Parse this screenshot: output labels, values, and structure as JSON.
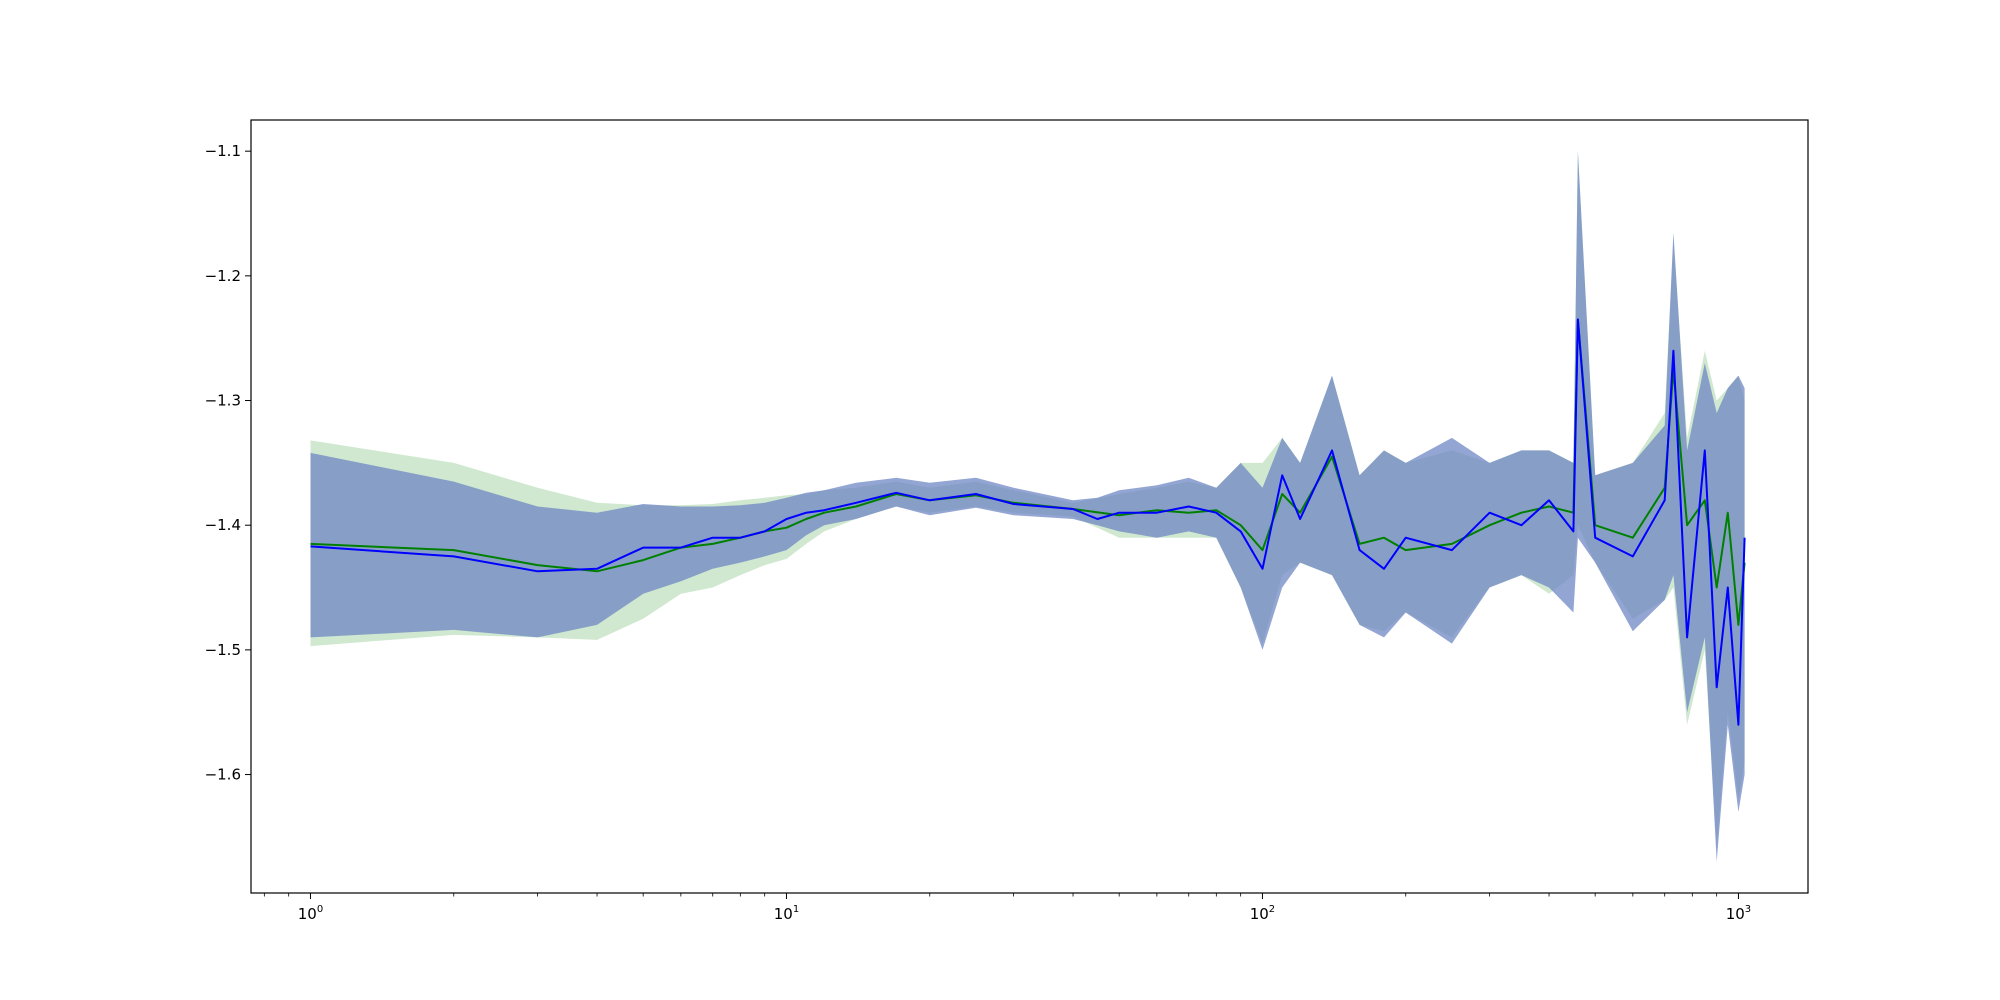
{
  "chart_data": {
    "type": "line",
    "title": "",
    "xlabel": "",
    "ylabel": "",
    "x_scale": "log",
    "xlim": [
      0.75,
      1400
    ],
    "ylim": [
      -1.695,
      -1.075
    ],
    "x_ticks": [
      {
        "value": 1,
        "base": "10",
        "exp": "0"
      },
      {
        "value": 10,
        "base": "10",
        "exp": "1"
      },
      {
        "value": 100,
        "base": "10",
        "exp": "2"
      },
      {
        "value": 1000,
        "base": "10",
        "exp": "3"
      }
    ],
    "y_ticks": [
      {
        "value": -1.1,
        "label": "−1.1"
      },
      {
        "value": -1.2,
        "label": "−1.2"
      },
      {
        "value": -1.3,
        "label": "−1.3"
      },
      {
        "value": -1.4,
        "label": "−1.4"
      },
      {
        "value": -1.5,
        "label": "−1.5"
      },
      {
        "value": -1.6,
        "label": "−1.6"
      }
    ],
    "grid": false,
    "legend": "none",
    "series": [
      {
        "color": "#008000",
        "band_color": "#a8d5a8",
        "x": [
          1,
          2,
          3,
          4,
          5,
          6,
          7,
          8,
          9,
          10,
          11,
          12,
          14,
          17,
          20,
          25,
          30,
          40,
          50,
          60,
          70,
          80,
          90,
          100,
          110,
          120,
          140,
          160,
          180,
          200,
          250,
          300,
          350,
          400,
          450,
          460,
          500,
          600,
          700,
          730,
          780,
          850,
          900,
          950,
          1000,
          1030
        ],
        "y": [
          -1.415,
          -1.42,
          -1.432,
          -1.437,
          -1.428,
          -1.418,
          -1.415,
          -1.41,
          -1.405,
          -1.402,
          -1.395,
          -1.39,
          -1.385,
          -1.375,
          -1.38,
          -1.376,
          -1.382,
          -1.387,
          -1.392,
          -1.388,
          -1.39,
          -1.388,
          -1.4,
          -1.42,
          -1.375,
          -1.39,
          -1.345,
          -1.415,
          -1.41,
          -1.42,
          -1.415,
          -1.4,
          -1.39,
          -1.385,
          -1.39,
          -1.235,
          -1.4,
          -1.41,
          -1.37,
          -1.275,
          -1.4,
          -1.38,
          -1.45,
          -1.39,
          -1.48,
          -1.43
        ],
        "lower": [
          -1.497,
          -1.488,
          -1.49,
          -1.492,
          -1.475,
          -1.455,
          -1.45,
          -1.44,
          -1.432,
          -1.427,
          -1.415,
          -1.405,
          -1.395,
          -1.385,
          -1.39,
          -1.385,
          -1.39,
          -1.393,
          -1.41,
          -1.41,
          -1.41,
          -1.41,
          -1.45,
          -1.495,
          -1.44,
          -1.43,
          -1.44,
          -1.48,
          -1.485,
          -1.47,
          -1.49,
          -1.45,
          -1.44,
          -1.455,
          -1.44,
          -1.4,
          -1.43,
          -1.475,
          -1.46,
          -1.45,
          -1.56,
          -1.5,
          -1.66,
          -1.55,
          -1.62,
          -1.59
        ],
        "upper": [
          -1.332,
          -1.35,
          -1.37,
          -1.382,
          -1.384,
          -1.384,
          -1.383,
          -1.38,
          -1.378,
          -1.376,
          -1.375,
          -1.372,
          -1.37,
          -1.365,
          -1.37,
          -1.365,
          -1.372,
          -1.382,
          -1.375,
          -1.37,
          -1.365,
          -1.37,
          -1.35,
          -1.35,
          -1.33,
          -1.35,
          -1.28,
          -1.36,
          -1.34,
          -1.35,
          -1.34,
          -1.35,
          -1.34,
          -1.34,
          -1.35,
          -1.1,
          -1.36,
          -1.35,
          -1.31,
          -1.17,
          -1.33,
          -1.26,
          -1.3,
          -1.29,
          -1.28,
          -1.3
        ]
      },
      {
        "color": "#0000ff",
        "band_color": "#6f87c4",
        "x": [
          1,
          2,
          3,
          4,
          5,
          6,
          7,
          8,
          9,
          10,
          11,
          12,
          14,
          17,
          20,
          25,
          30,
          40,
          45,
          50,
          60,
          70,
          80,
          90,
          100,
          110,
          120,
          140,
          160,
          180,
          200,
          250,
          300,
          350,
          400,
          450,
          460,
          500,
          600,
          700,
          730,
          780,
          850,
          900,
          950,
          1000,
          1030
        ],
        "y": [
          -1.417,
          -1.425,
          -1.437,
          -1.435,
          -1.418,
          -1.418,
          -1.41,
          -1.41,
          -1.405,
          -1.395,
          -1.39,
          -1.388,
          -1.382,
          -1.374,
          -1.38,
          -1.375,
          -1.383,
          -1.387,
          -1.395,
          -1.39,
          -1.39,
          -1.385,
          -1.39,
          -1.405,
          -1.435,
          -1.36,
          -1.395,
          -1.34,
          -1.42,
          -1.435,
          -1.41,
          -1.42,
          -1.39,
          -1.4,
          -1.38,
          -1.405,
          -1.235,
          -1.41,
          -1.425,
          -1.38,
          -1.26,
          -1.49,
          -1.34,
          -1.53,
          -1.45,
          -1.56,
          -1.41
        ],
        "lower": [
          -1.49,
          -1.484,
          -1.49,
          -1.48,
          -1.455,
          -1.445,
          -1.435,
          -1.43,
          -1.425,
          -1.42,
          -1.408,
          -1.4,
          -1.395,
          -1.385,
          -1.392,
          -1.386,
          -1.392,
          -1.395,
          -1.4,
          -1.405,
          -1.41,
          -1.405,
          -1.41,
          -1.45,
          -1.5,
          -1.45,
          -1.43,
          -1.44,
          -1.48,
          -1.49,
          -1.47,
          -1.495,
          -1.45,
          -1.44,
          -1.45,
          -1.47,
          -1.41,
          -1.43,
          -1.485,
          -1.46,
          -1.44,
          -1.55,
          -1.49,
          -1.67,
          -1.56,
          -1.63,
          -1.6
        ],
        "upper": [
          -1.342,
          -1.365,
          -1.385,
          -1.39,
          -1.383,
          -1.385,
          -1.385,
          -1.384,
          -1.382,
          -1.378,
          -1.374,
          -1.372,
          -1.366,
          -1.362,
          -1.366,
          -1.362,
          -1.37,
          -1.38,
          -1.378,
          -1.372,
          -1.368,
          -1.362,
          -1.37,
          -1.35,
          -1.37,
          -1.33,
          -1.35,
          -1.28,
          -1.36,
          -1.34,
          -1.35,
          -1.33,
          -1.35,
          -1.34,
          -1.34,
          -1.35,
          -1.1,
          -1.36,
          -1.35,
          -1.32,
          -1.165,
          -1.34,
          -1.27,
          -1.31,
          -1.29,
          -1.28,
          -1.29
        ]
      }
    ]
  }
}
